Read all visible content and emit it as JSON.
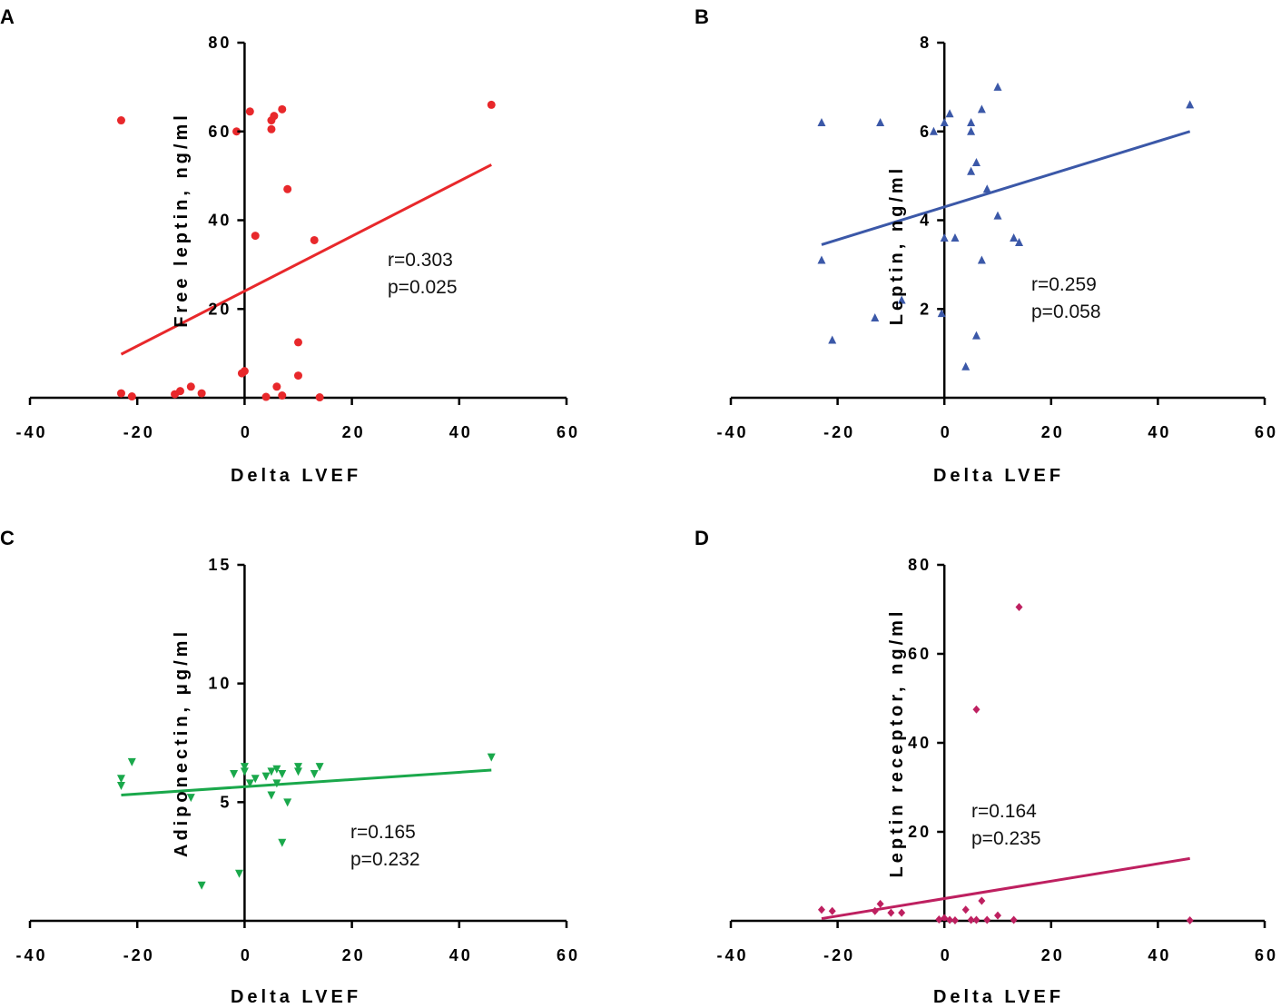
{
  "chart_data": [
    {
      "panel": "A",
      "type": "scatter",
      "xlabel": "Delta LVEF",
      "ylabel": "Free leptin, ng/ml",
      "xlim": [
        -40,
        60
      ],
      "ylim": [
        0,
        80
      ],
      "xticks": [
        -40,
        -20,
        0,
        20,
        40,
        60
      ],
      "yticks": [
        20,
        40,
        60,
        80
      ],
      "color": "#e8282b",
      "marker": "circle",
      "points": [
        {
          "x": -23,
          "y": 62.5
        },
        {
          "x": -1.5,
          "y": 60
        },
        {
          "x": 1,
          "y": 64.5
        },
        {
          "x": 5,
          "y": 62.5
        },
        {
          "x": 5.5,
          "y": 63.5
        },
        {
          "x": 5,
          "y": 60.5
        },
        {
          "x": 7,
          "y": 65
        },
        {
          "x": 46,
          "y": 66
        },
        {
          "x": 8,
          "y": 47
        },
        {
          "x": 2,
          "y": 36.5
        },
        {
          "x": 13,
          "y": 35.5
        },
        {
          "x": 10,
          "y": 12.5
        },
        {
          "x": -23,
          "y": 1
        },
        {
          "x": -21,
          "y": 0.3
        },
        {
          "x": -13,
          "y": 0.8
        },
        {
          "x": -12,
          "y": 1.5
        },
        {
          "x": -10,
          "y": 2.5
        },
        {
          "x": -8,
          "y": 1
        },
        {
          "x": -0.5,
          "y": 5.5
        },
        {
          "x": 0,
          "y": 6
        },
        {
          "x": 4,
          "y": 0.2
        },
        {
          "x": 6,
          "y": 2.5
        },
        {
          "x": 7,
          "y": 0.5
        },
        {
          "x": 10,
          "y": 5
        },
        {
          "x": 14,
          "y": 0.1
        }
      ],
      "fit": {
        "x": [
          -23,
          46
        ],
        "y": [
          9.8,
          52.5
        ]
      },
      "annotation": [
        "r=0.303",
        "p=0.025"
      ]
    },
    {
      "panel": "B",
      "type": "scatter",
      "xlabel": "Delta LVEF",
      "ylabel": "Leptin, ng/ml",
      "xlim": [
        -40,
        60
      ],
      "ylim": [
        0,
        8
      ],
      "xticks": [
        -40,
        -20,
        0,
        20,
        40,
        60
      ],
      "yticks": [
        2,
        4,
        6,
        8
      ],
      "color": "#3b58a8",
      "marker": "triangle-up",
      "points": [
        {
          "x": -23,
          "y": 6.2
        },
        {
          "x": -12,
          "y": 6.2
        },
        {
          "x": -23,
          "y": 3.1
        },
        {
          "x": -21,
          "y": 1.3
        },
        {
          "x": -13,
          "y": 1.8
        },
        {
          "x": -8,
          "y": 2.2
        },
        {
          "x": -2,
          "y": 6
        },
        {
          "x": 0,
          "y": 6.2
        },
        {
          "x": 1,
          "y": 6.4
        },
        {
          "x": 0,
          "y": 3.6
        },
        {
          "x": -0.5,
          "y": 1.9
        },
        {
          "x": 2,
          "y": 3.6
        },
        {
          "x": 5,
          "y": 6.2
        },
        {
          "x": 5,
          "y": 6
        },
        {
          "x": 5,
          "y": 5.1
        },
        {
          "x": 6,
          "y": 5.3
        },
        {
          "x": 7,
          "y": 6.5
        },
        {
          "x": 8,
          "y": 4.7
        },
        {
          "x": 10,
          "y": 7
        },
        {
          "x": 10,
          "y": 4.1
        },
        {
          "x": 7,
          "y": 3.1
        },
        {
          "x": 13,
          "y": 3.6
        },
        {
          "x": 14,
          "y": 3.5
        },
        {
          "x": 6,
          "y": 1.4
        },
        {
          "x": 4,
          "y": 0.7
        },
        {
          "x": 46,
          "y": 6.6
        }
      ],
      "fit": {
        "x": [
          -23,
          46
        ],
        "y": [
          3.45,
          6.0
        ]
      },
      "annotation": [
        "r=0.259",
        "p=0.058"
      ]
    },
    {
      "panel": "C",
      "type": "scatter",
      "xlabel": "Delta LVEF",
      "ylabel": "Adiponectin, μg/ml",
      "xlim": [
        -40,
        60
      ],
      "ylim": [
        0,
        15
      ],
      "xticks": [
        -40,
        -20,
        0,
        20,
        40,
        60
      ],
      "yticks": [
        5,
        10,
        15
      ],
      "color": "#1aa84b",
      "marker": "triangle-down",
      "points": [
        {
          "x": -23,
          "y": 6
        },
        {
          "x": -23,
          "y": 5.7
        },
        {
          "x": -21,
          "y": 6.7
        },
        {
          "x": -10,
          "y": 5.2
        },
        {
          "x": -8,
          "y": 1.5
        },
        {
          "x": -2,
          "y": 6.2
        },
        {
          "x": 0,
          "y": 6.5
        },
        {
          "x": 0,
          "y": 6.3
        },
        {
          "x": -1,
          "y": 2
        },
        {
          "x": 1,
          "y": 5.8
        },
        {
          "x": 2,
          "y": 6
        },
        {
          "x": 4,
          "y": 6.1
        },
        {
          "x": 5,
          "y": 6.3
        },
        {
          "x": 5,
          "y": 5.3
        },
        {
          "x": 6,
          "y": 6.4
        },
        {
          "x": 6,
          "y": 5.8
        },
        {
          "x": 7,
          "y": 6.2
        },
        {
          "x": 8,
          "y": 5
        },
        {
          "x": 7,
          "y": 3.3
        },
        {
          "x": 10,
          "y": 6.3
        },
        {
          "x": 10,
          "y": 6.5
        },
        {
          "x": 13,
          "y": 6.2
        },
        {
          "x": 14,
          "y": 6.5
        },
        {
          "x": 46,
          "y": 6.9
        }
      ],
      "fit": {
        "x": [
          -23,
          46
        ],
        "y": [
          5.3,
          6.35
        ]
      },
      "annotation": [
        "r=0.165",
        "p=0.232"
      ]
    },
    {
      "panel": "D",
      "type": "scatter",
      "xlabel": "Delta LVEF",
      "ylabel": "Leptin receptor, ng/ml",
      "xlim": [
        -40,
        60
      ],
      "ylim": [
        0,
        80
      ],
      "xticks": [
        -40,
        -20,
        0,
        20,
        40,
        60
      ],
      "yticks": [
        20,
        40,
        60,
        80
      ],
      "color": "#be2060",
      "marker": "diamond",
      "points": [
        {
          "x": -23,
          "y": 2.5
        },
        {
          "x": -21,
          "y": 2.2
        },
        {
          "x": -13,
          "y": 2.2
        },
        {
          "x": -12,
          "y": 3.8
        },
        {
          "x": -10,
          "y": 1.8
        },
        {
          "x": -8,
          "y": 1.8
        },
        {
          "x": -1,
          "y": 0.3
        },
        {
          "x": 0,
          "y": 0.6
        },
        {
          "x": 1,
          "y": 0.2
        },
        {
          "x": 2,
          "y": 0.1
        },
        {
          "x": 4,
          "y": 2.5
        },
        {
          "x": 5,
          "y": 0.2
        },
        {
          "x": 6,
          "y": 0.2
        },
        {
          "x": 7,
          "y": 4.5
        },
        {
          "x": 8,
          "y": 0.2
        },
        {
          "x": 10,
          "y": 1.2
        },
        {
          "x": 13,
          "y": 0.2
        },
        {
          "x": 6,
          "y": 47.5
        },
        {
          "x": 14,
          "y": 70.5
        },
        {
          "x": 46,
          "y": 0.1
        }
      ],
      "fit": {
        "x": [
          -23,
          46
        ],
        "y": [
          0.5,
          14
        ]
      },
      "annotation": [
        "r=0.164",
        "p=0.235"
      ]
    }
  ]
}
